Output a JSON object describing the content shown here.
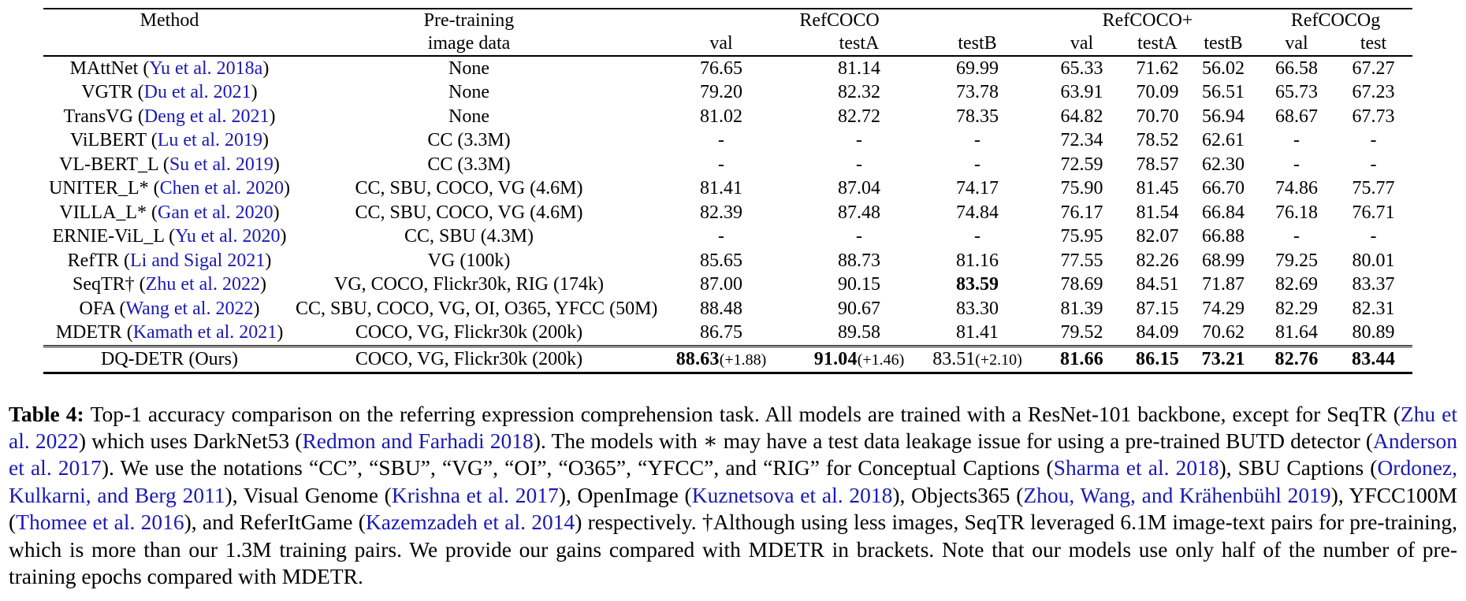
{
  "colors": {
    "citation_blue": "#1a1ab2",
    "text": "#000000"
  },
  "table": {
    "columns": {
      "method_header": "Method",
      "pretrain_header_line1": "Pre-training",
      "pretrain_header_line2": "image data",
      "groups": [
        {
          "label": "RefCOCO",
          "subs": [
            "val",
            "testA",
            "testB"
          ]
        },
        {
          "label": "RefCOCO+",
          "subs": [
            "val",
            "testA",
            "testB"
          ]
        },
        {
          "label": "RefCOCOg",
          "subs": [
            "val",
            "test"
          ]
        }
      ]
    },
    "rows": [
      {
        "method": "MAttNet",
        "cite": "Yu et al. 2018a",
        "pretrain": "None",
        "cells": [
          {
            "v": "76.65"
          },
          {
            "v": "81.14"
          },
          {
            "v": "69.99"
          },
          {
            "v": "65.33"
          },
          {
            "v": "71.62"
          },
          {
            "v": "56.02"
          },
          {
            "v": "66.58"
          },
          {
            "v": "67.27"
          }
        ]
      },
      {
        "method": "VGTR",
        "cite": "Du et al. 2021",
        "pretrain": "None",
        "cells": [
          {
            "v": "79.20"
          },
          {
            "v": "82.32"
          },
          {
            "v": "73.78"
          },
          {
            "v": "63.91"
          },
          {
            "v": "70.09"
          },
          {
            "v": "56.51"
          },
          {
            "v": "65.73"
          },
          {
            "v": "67.23"
          }
        ]
      },
      {
        "method": "TransVG",
        "cite": "Deng et al. 2021",
        "pretrain": "None",
        "cells": [
          {
            "v": "81.02"
          },
          {
            "v": "82.72"
          },
          {
            "v": "78.35"
          },
          {
            "v": "64.82"
          },
          {
            "v": "70.70"
          },
          {
            "v": "56.94"
          },
          {
            "v": "68.67"
          },
          {
            "v": "67.73"
          }
        ]
      },
      {
        "method": "ViLBERT",
        "cite": "Lu et al. 2019",
        "pretrain": "CC (3.3M)",
        "cells": [
          {
            "v": "-"
          },
          {
            "v": "-"
          },
          {
            "v": "-"
          },
          {
            "v": "72.34"
          },
          {
            "v": "78.52"
          },
          {
            "v": "62.61"
          },
          {
            "v": "-"
          },
          {
            "v": "-"
          }
        ]
      },
      {
        "method": "VL-BERT_L",
        "cite": "Su et al. 2019",
        "pretrain": "CC (3.3M)",
        "cells": [
          {
            "v": "-"
          },
          {
            "v": "-"
          },
          {
            "v": "-"
          },
          {
            "v": "72.59"
          },
          {
            "v": "78.57"
          },
          {
            "v": "62.30"
          },
          {
            "v": "-"
          },
          {
            "v": "-"
          }
        ]
      },
      {
        "method": "UNITER_L*",
        "cite": "Chen et al. 2020",
        "pretrain": "CC, SBU, COCO, VG (4.6M)",
        "cells": [
          {
            "v": "81.41"
          },
          {
            "v": "87.04"
          },
          {
            "v": "74.17"
          },
          {
            "v": "75.90"
          },
          {
            "v": "81.45"
          },
          {
            "v": "66.70"
          },
          {
            "v": "74.86"
          },
          {
            "v": "75.77"
          }
        ]
      },
      {
        "method": "VILLA_L*",
        "cite": "Gan et al. 2020",
        "pretrain": "CC, SBU, COCO, VG (4.6M)",
        "cells": [
          {
            "v": "82.39"
          },
          {
            "v": "87.48"
          },
          {
            "v": "74.84"
          },
          {
            "v": "76.17"
          },
          {
            "v": "81.54"
          },
          {
            "v": "66.84"
          },
          {
            "v": "76.18"
          },
          {
            "v": "76.71"
          }
        ]
      },
      {
        "method": "ERNIE-ViL_L",
        "cite": "Yu et al. 2020",
        "pretrain": "CC, SBU (4.3M)",
        "cells": [
          {
            "v": "-"
          },
          {
            "v": "-"
          },
          {
            "v": "-"
          },
          {
            "v": "75.95"
          },
          {
            "v": "82.07"
          },
          {
            "v": "66.88"
          },
          {
            "v": "-"
          },
          {
            "v": "-"
          }
        ]
      },
      {
        "method": "RefTR",
        "cite": "Li and Sigal 2021",
        "pretrain": "VG (100k)",
        "cells": [
          {
            "v": "85.65"
          },
          {
            "v": "88.73"
          },
          {
            "v": "81.16"
          },
          {
            "v": "77.55"
          },
          {
            "v": "82.26"
          },
          {
            "v": "68.99"
          },
          {
            "v": "79.25"
          },
          {
            "v": "80.01"
          }
        ]
      },
      {
        "method": "SeqTR†",
        "cite": "Zhu et al. 2022",
        "pretrain": "VG, COCO, Flickr30k, RIG (174k)",
        "cells": [
          {
            "v": "87.00"
          },
          {
            "v": "90.15"
          },
          {
            "v": "83.59",
            "bold": true
          },
          {
            "v": "78.69"
          },
          {
            "v": "84.51"
          },
          {
            "v": "71.87"
          },
          {
            "v": "82.69"
          },
          {
            "v": "83.37"
          }
        ]
      },
      {
        "method": "OFA",
        "cite": "Wang et al. 2022",
        "pretrain": "CC, SBU, COCO, VG, OI, O365, YFCC (50M)",
        "cells": [
          {
            "v": "88.48"
          },
          {
            "v": "90.67"
          },
          {
            "v": "83.30"
          },
          {
            "v": "81.39"
          },
          {
            "v": "87.15"
          },
          {
            "v": "74.29"
          },
          {
            "v": "82.29"
          },
          {
            "v": "82.31"
          }
        ]
      },
      {
        "method": "MDETR",
        "cite": "Kamath et al. 2021",
        "pretrain": "COCO, VG, Flickr30k (200k)",
        "cells": [
          {
            "v": "86.75"
          },
          {
            "v": "89.58"
          },
          {
            "v": "81.41"
          },
          {
            "v": "79.52"
          },
          {
            "v": "84.09"
          },
          {
            "v": "70.62"
          },
          {
            "v": "81.64"
          },
          {
            "v": "80.89"
          }
        ]
      },
      {
        "method": "DQ-DETR",
        "suffix": "(Ours)",
        "pretrain": "COCO, VG, Flickr30k (200k)",
        "last": true,
        "cells": [
          {
            "v": "88.63",
            "gain": "(+1.88)",
            "bold": true
          },
          {
            "v": "91.04",
            "gain": "(+1.46)",
            "bold": true
          },
          {
            "v": "83.51",
            "gain": "(+2.10)"
          },
          {
            "v": "81.66",
            "bold": true
          },
          {
            "v": "86.15",
            "bold": true
          },
          {
            "v": "73.21",
            "bold": true
          },
          {
            "v": "82.76",
            "bold": true
          },
          {
            "v": "83.44",
            "bold": true
          }
        ]
      }
    ]
  },
  "caption": {
    "segments": [
      {
        "t": "Table 4:  ",
        "s": "bold"
      },
      {
        "t": "Top-1 accuracy comparison on the referring expression comprehension task. All models are trained with a ResNet-101 backbone, except for SeqTR ("
      },
      {
        "t": "Zhu et al. 2022",
        "s": "cite"
      },
      {
        "t": ") which uses DarkNet53 ("
      },
      {
        "t": "Redmon and Farhadi 2018",
        "s": "cite"
      },
      {
        "t": "). The models with ∗ may have a test data leakage issue for using a pre-trained BUTD detector ("
      },
      {
        "t": "Anderson et al. 2017",
        "s": "cite"
      },
      {
        "t": "). We use the notations “CC”, “SBU”, “VG”, “OI”, “O365”, “YFCC”, and “RIG” for Conceptual Captions ("
      },
      {
        "t": "Sharma et al. 2018",
        "s": "cite"
      },
      {
        "t": "), SBU Captions ("
      },
      {
        "t": "Ordonez, Kulkarni, and Berg 2011",
        "s": "cite"
      },
      {
        "t": "), Visual Genome ("
      },
      {
        "t": "Krishna et al. 2017",
        "s": "cite"
      },
      {
        "t": "), OpenImage ("
      },
      {
        "t": "Kuznetsova et al. 2018",
        "s": "cite"
      },
      {
        "t": "), Objects365 ("
      },
      {
        "t": "Zhou, Wang, and Krähenbühl 2019",
        "s": "cite"
      },
      {
        "t": "), YFCC100M ("
      },
      {
        "t": "Thomee et al. 2016",
        "s": "cite"
      },
      {
        "t": "), and ReferItGame ("
      },
      {
        "t": "Kazemzadeh et al. 2014",
        "s": "cite"
      },
      {
        "t": ") respectively. †Although using less images, SeqTR leveraged 6.1M image-text pairs for pre-training, which is more than our 1.3M training pairs. We provide our gains compared with MDETR in brackets. Note that our models use only half of the number of pre-training epochs compared with MDETR."
      }
    ]
  }
}
